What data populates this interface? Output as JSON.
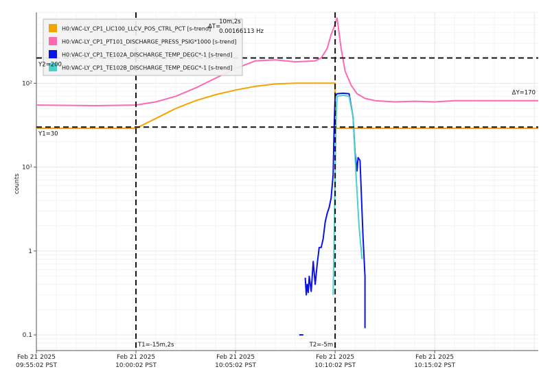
{
  "chart_data": {
    "type": "line",
    "title": "",
    "xlabel": "",
    "ylabel": "counts",
    "yscale": "log",
    "ylim": [
      0.065,
      700
    ],
    "xlim_minutes": [
      -25,
      0.2
    ],
    "grid": true,
    "legend_placement": "top-left",
    "y_ticks": [
      {
        "value": 100,
        "label": "10²"
      },
      {
        "value": 10,
        "label": "10¹"
      },
      {
        "value": 1,
        "label": "1"
      },
      {
        "value": 0.1,
        "label": "0.1"
      }
    ],
    "x_ticks": [
      {
        "value": -25,
        "line1": "Feb 21 2025",
        "line2": "09:55:02 PST"
      },
      {
        "value": -20,
        "line1": "Feb 21 2025",
        "line2": "10:00:02 PST"
      },
      {
        "value": -15,
        "line1": "Feb 21 2025",
        "line2": "10:05:02 PST"
      },
      {
        "value": -10,
        "line1": "Feb 21 2025",
        "line2": "10:10:02 PST"
      },
      {
        "value": -5,
        "line1": "Feb 21 2025",
        "line2": "10:15:02 PST"
      }
    ],
    "series": [
      {
        "name": "H0:VAC-LY_CP1_LIC100_LLCV_POS_CTRL_PCT [s-trend]",
        "color": "#f5a300",
        "x": [
          -25,
          -20,
          -19,
          -18,
          -17,
          -16,
          -15,
          -14,
          -13,
          -12,
          -10,
          -10.01,
          -9.99,
          0.2
        ],
        "y": [
          29,
          29,
          38,
          50,
          62,
          73,
          83,
          92,
          98,
          100,
          100,
          100,
          29,
          29
        ]
      },
      {
        "name": "H0:VAC-LY_CP1_PT101_DISCHARGE_PRESS_PSIG*1000 [s-trend]",
        "color": "#ff69b4",
        "x": [
          -25,
          -22,
          -20,
          -19,
          -18,
          -17,
          -16,
          -15,
          -14,
          -13,
          -12,
          -11,
          -10.7,
          -10.4,
          -10.2,
          -10.05,
          -9.9,
          -9.7,
          -9.5,
          -9.2,
          -8.9,
          -8.5,
          -8,
          -7,
          -6,
          -5,
          -4,
          0.2
        ],
        "y": [
          55,
          54,
          55,
          60,
          70,
          88,
          115,
          150,
          185,
          190,
          180,
          185,
          200,
          260,
          380,
          470,
          600,
          260,
          140,
          95,
          75,
          66,
          62,
          60,
          61,
          60,
          62,
          62
        ]
      },
      {
        "name": "H0:VAC-LY_CP1_TE102A_DISCHARGE_TEMP_DEGC*-1 [s-trend]",
        "color": "#0a12e8",
        "x": [
          -11.5,
          -11.45,
          -11.4,
          -11.35,
          -11.3,
          -11.2,
          -11.1,
          -11,
          -10.9,
          -10.8,
          -10.7,
          -10.6,
          -10.5,
          -10.4,
          -10.3,
          -10.2,
          -10.1,
          -10.05,
          -10,
          -9.9,
          -9.6,
          -9.3,
          -9.1,
          -9.0,
          -8.9,
          -8.85,
          -8.75,
          -8.6,
          -8.5,
          -8.5
        ],
        "y": [
          0.48,
          0.3,
          0.4,
          0.32,
          0.5,
          0.33,
          0.75,
          0.4,
          0.7,
          1.1,
          1.1,
          1.4,
          2.2,
          2.8,
          3.3,
          4.3,
          8,
          30,
          70,
          75,
          76,
          75,
          40,
          15,
          9,
          13,
          12,
          1.5,
          0.5,
          0.12
        ]
      },
      {
        "name": "H0:VAC-LY_CP1_TE102B_DISCHARGE_TEMP_DEGC*-1 [s-trend]",
        "color": "#48d1cc",
        "x": [
          -10.1,
          -10.05,
          -10,
          -9.95,
          -9.9,
          -9.6,
          -9.3,
          -9.1,
          -8.95,
          -8.8,
          -8.65
        ],
        "y": [
          0.3,
          1.5,
          8,
          40,
          70,
          72,
          70,
          40,
          8,
          2,
          0.8
        ]
      }
    ],
    "annotations": {
      "delta_t_label": "ΔT=",
      "delta_t_value": "10m,2s",
      "delta_t_freq": "0.00166113 Hz",
      "y2_label": "Y2=200",
      "y1_label": "Y1=30",
      "delta_y_label": "ΔY=170",
      "t1_label": "T1=-15m,2s",
      "t2_label": "T2=-5m",
      "y1_value": 30,
      "y2_value": 200,
      "t1_value": -20,
      "t2_value": -10
    },
    "small_marker": {
      "x": -11.7,
      "y": 0.1,
      "color": "#0a12e8"
    }
  }
}
